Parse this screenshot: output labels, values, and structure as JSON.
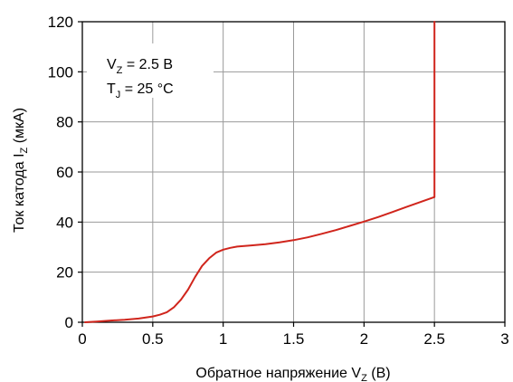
{
  "chart_data": {
    "type": "line",
    "xlabel_main": "Обратное напряжение V",
    "xlabel_sub": "Z",
    "xlabel_tail": " (В)",
    "ylabel_main": "Ток катода I",
    "ylabel_sub": "Z",
    "ylabel_tail": " (мкА)",
    "xlim": [
      0,
      3
    ],
    "ylim": [
      0,
      120
    ],
    "xticks": [
      0,
      0.5,
      1,
      1.5,
      2,
      2.5,
      3
    ],
    "xtick_labels": [
      "0",
      "0.5",
      "1",
      "1.5",
      "2",
      "2.5",
      "3"
    ],
    "yticks": [
      0,
      20,
      40,
      60,
      80,
      100,
      120
    ],
    "ytick_labels": [
      "0",
      "20",
      "40",
      "60",
      "80",
      "100",
      "120"
    ],
    "grid": true,
    "annotations": {
      "line1_main": "V",
      "line1_sub": "Z",
      "line1_tail": " = 2.5 В",
      "line2_main": "T",
      "line2_sub": "J",
      "line2_tail": " = 25 °C"
    },
    "series": [
      {
        "color": "#d0251c",
        "x": [
          0.02,
          0.1,
          0.2,
          0.3,
          0.4,
          0.5,
          0.55,
          0.6,
          0.65,
          0.7,
          0.75,
          0.8,
          0.85,
          0.9,
          0.95,
          1.0,
          1.05,
          1.1,
          1.2,
          1.3,
          1.4,
          1.5,
          1.6,
          1.7,
          1.8,
          1.9,
          2.0,
          2.1,
          2.2,
          2.3,
          2.4,
          2.5,
          2.5
        ],
        "y": [
          0,
          0.3,
          0.7,
          1.0,
          1.5,
          2.3,
          3.0,
          4.0,
          6.0,
          9.0,
          13.0,
          18.0,
          22.5,
          25.5,
          27.8,
          29.0,
          29.7,
          30.2,
          30.7,
          31.2,
          31.9,
          32.8,
          33.9,
          35.3,
          36.8,
          38.5,
          40.2,
          42.0,
          44.0,
          46.0,
          48.0,
          50.0,
          120.0
        ]
      }
    ]
  }
}
